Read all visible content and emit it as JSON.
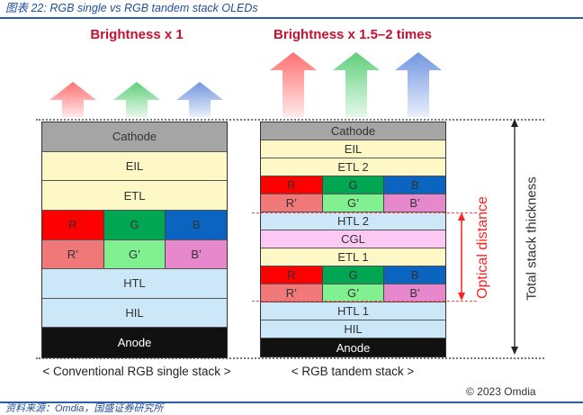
{
  "title": "图表 22:  RGB single vs RGB tandem stack OLEDs",
  "colors": {
    "title_blue": "#1f4e99",
    "headline_red": "#c8102e",
    "cathode": "#a5a5a5",
    "yellow": "#fdf8c5",
    "R": "#ff0000",
    "G": "#00a651",
    "B": "#0a64c0",
    "R_prime": "#f07878",
    "G_prime": "#80f090",
    "B_prime": "#e888cc",
    "blue_layer": "#cce8f8",
    "cgl": "#fcc8f4",
    "anode": "#111111",
    "optical_red": "#ff2020"
  },
  "single": {
    "headline": "Brightness x 1",
    "caption": "< Conventional RGB single stack >",
    "layers": [
      {
        "cells": [
          {
            "label": "Cathode",
            "color": "cathode"
          }
        ]
      },
      {
        "cells": [
          {
            "label": "EIL",
            "color": "yellow"
          }
        ]
      },
      {
        "cells": [
          {
            "label": "ETL",
            "color": "yellow"
          }
        ]
      },
      {
        "cells": [
          {
            "label": "R",
            "color": "R"
          },
          {
            "label": "G",
            "color": "G"
          },
          {
            "label": "B",
            "color": "B"
          }
        ]
      },
      {
        "cells": [
          {
            "label": "R’",
            "color": "R_prime"
          },
          {
            "label": "G’",
            "color": "G_prime"
          },
          {
            "label": "B’",
            "color": "B_prime"
          }
        ]
      },
      {
        "cells": [
          {
            "label": "HTL",
            "color": "blue_layer"
          }
        ]
      },
      {
        "cells": [
          {
            "label": "HIL",
            "color": "blue_layer"
          }
        ]
      },
      {
        "cells": [
          {
            "label": "Anode",
            "color": "anode",
            "text": "#ffffff"
          }
        ]
      }
    ]
  },
  "tandem": {
    "headline": "Brightness x 1.5–2 times",
    "caption": "< RGB tandem stack >",
    "layers": [
      {
        "cells": [
          {
            "label": "Cathode",
            "color": "cathode"
          }
        ]
      },
      {
        "cells": [
          {
            "label": "EIL",
            "color": "yellow"
          }
        ]
      },
      {
        "cells": [
          {
            "label": "ETL 2",
            "color": "yellow"
          }
        ]
      },
      {
        "cells": [
          {
            "label": "R",
            "color": "R"
          },
          {
            "label": "G",
            "color": "G"
          },
          {
            "label": "B",
            "color": "B"
          }
        ]
      },
      {
        "cells": [
          {
            "label": "R’",
            "color": "R_prime"
          },
          {
            "label": "G’",
            "color": "G_prime"
          },
          {
            "label": "B’",
            "color": "B_prime"
          }
        ]
      },
      {
        "cells": [
          {
            "label": "HTL 2",
            "color": "blue_layer"
          }
        ]
      },
      {
        "cells": [
          {
            "label": "CGL",
            "color": "cgl"
          }
        ]
      },
      {
        "cells": [
          {
            "label": "ETL 1",
            "color": "yellow"
          }
        ]
      },
      {
        "cells": [
          {
            "label": "R",
            "color": "R"
          },
          {
            "label": "G",
            "color": "G"
          },
          {
            "label": "B",
            "color": "B"
          }
        ]
      },
      {
        "cells": [
          {
            "label": "R’",
            "color": "R_prime"
          },
          {
            "label": "G’",
            "color": "G_prime"
          },
          {
            "label": "B’",
            "color": "B_prime"
          }
        ]
      },
      {
        "cells": [
          {
            "label": "HTL 1",
            "color": "blue_layer"
          }
        ]
      },
      {
        "cells": [
          {
            "label": "HIL",
            "color": "blue_layer"
          }
        ]
      },
      {
        "cells": [
          {
            "label": "Anode",
            "color": "anode",
            "text": "#ffffff"
          }
        ]
      }
    ]
  },
  "optical_distance_label": "Optical distance",
  "total_thickness_label": "Total stack thickness",
  "copyright": "© 2023 Omdia",
  "source": "资料来源：Omdia，国盛证券研究所"
}
